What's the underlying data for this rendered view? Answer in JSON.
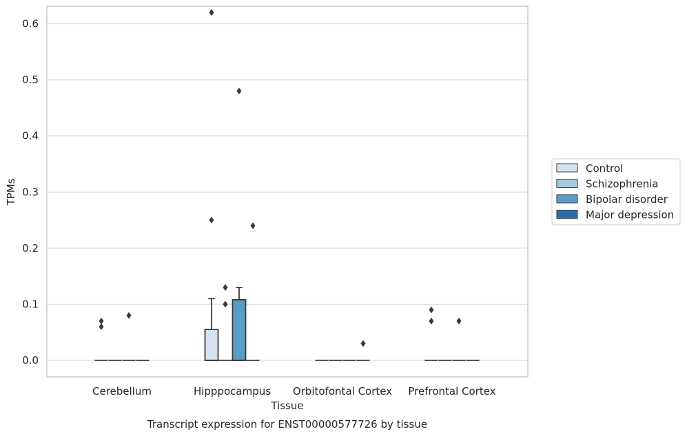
{
  "chart_data": {
    "type": "box",
    "title": "",
    "caption": "Transcript expression for ENST00000577726 by tissue",
    "xlabel": "Tissue",
    "ylabel": "TPMs",
    "ylim": [
      -0.03,
      0.65
    ],
    "yticks": [
      "0.0",
      "0.1",
      "0.2",
      "0.3",
      "0.4",
      "0.5",
      "0.6"
    ],
    "ytick_values": [
      0.0,
      0.1,
      0.2,
      0.3,
      0.4,
      0.5,
      0.6
    ],
    "grid": "horizontal",
    "legend_position": "right",
    "categories": [
      "Cerebellum",
      "Hipppocampus",
      "Orbitofontal Cortex",
      "Prefrontal Cortex"
    ],
    "series": [
      {
        "name": "Control",
        "color": "#d6e4f2",
        "boxes": [
          {
            "q1": 0,
            "median": 0,
            "q3": 0,
            "whisker_low": 0,
            "whisker_high": 0,
            "outliers": [
              0.07,
              0.06
            ]
          },
          {
            "q1": 0,
            "median": 0,
            "q3": 0.055,
            "whisker_low": 0,
            "whisker_high": 0.11,
            "outliers": [
              0.62,
              0.25
            ]
          },
          {
            "q1": 0,
            "median": 0,
            "q3": 0,
            "whisker_low": 0,
            "whisker_high": 0,
            "outliers": []
          },
          {
            "q1": 0,
            "median": 0,
            "q3": 0,
            "whisker_low": 0,
            "whisker_high": 0,
            "outliers": [
              0.09,
              0.07
            ]
          }
        ]
      },
      {
        "name": "Schizophrenia",
        "color": "#a3c8e0",
        "boxes": [
          {
            "q1": 0,
            "median": 0,
            "q3": 0,
            "whisker_low": 0,
            "whisker_high": 0,
            "outliers": []
          },
          {
            "q1": 0,
            "median": 0,
            "q3": 0,
            "whisker_low": 0,
            "whisker_high": 0,
            "outliers": [
              0.13,
              0.1
            ]
          },
          {
            "q1": 0,
            "median": 0,
            "q3": 0,
            "whisker_low": 0,
            "whisker_high": 0,
            "outliers": []
          },
          {
            "q1": 0,
            "median": 0,
            "q3": 0,
            "whisker_low": 0,
            "whisker_high": 0,
            "outliers": []
          }
        ]
      },
      {
        "name": "Bipolar disorder",
        "color": "#5a9cc6",
        "boxes": [
          {
            "q1": 0,
            "median": 0,
            "q3": 0,
            "whisker_low": 0,
            "whisker_high": 0,
            "outliers": [
              0.08
            ]
          },
          {
            "q1": 0,
            "median": 0,
            "q3": 0.108,
            "whisker_low": 0,
            "whisker_high": 0.13,
            "outliers": [
              0.48
            ]
          },
          {
            "q1": 0,
            "median": 0,
            "q3": 0,
            "whisker_low": 0,
            "whisker_high": 0,
            "outliers": []
          },
          {
            "q1": 0,
            "median": 0,
            "q3": 0,
            "whisker_low": 0,
            "whisker_high": 0,
            "outliers": [
              0.07
            ]
          }
        ]
      },
      {
        "name": "Major depression",
        "color": "#2d6ca8",
        "boxes": [
          {
            "q1": 0,
            "median": 0,
            "q3": 0,
            "whisker_low": 0,
            "whisker_high": 0,
            "outliers": []
          },
          {
            "q1": 0,
            "median": 0,
            "q3": 0,
            "whisker_low": 0,
            "whisker_high": 0,
            "outliers": [
              0.24
            ]
          },
          {
            "q1": 0,
            "median": 0,
            "q3": 0,
            "whisker_low": 0,
            "whisker_high": 0,
            "outliers": [
              0.03
            ]
          },
          {
            "q1": 0,
            "median": 0,
            "q3": 0,
            "whisker_low": 0,
            "whisker_high": 0,
            "outliers": []
          }
        ]
      }
    ]
  }
}
